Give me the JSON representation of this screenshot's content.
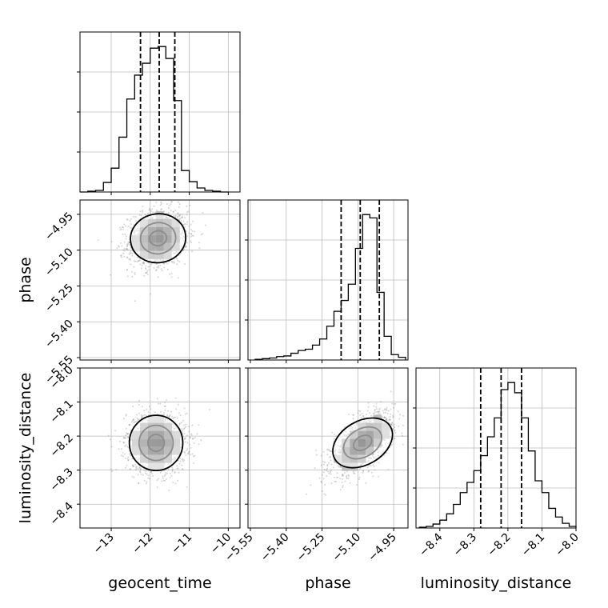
{
  "chart_data": {
    "type": "corner",
    "parameters": [
      "geocent_time",
      "phase",
      "luminosity_distance"
    ],
    "axis_labels": {
      "x": [
        "geocent_time",
        "phase",
        "luminosity_distance"
      ],
      "y": [
        "",
        "phase",
        "luminosity_distance"
      ]
    },
    "ranges": {
      "geocent_time": [
        -13.8,
        -9.7
      ],
      "phase": [
        -5.56,
        -4.89
      ],
      "luminosity_distance": [
        -8.47,
        -8.0
      ]
    },
    "ticks": {
      "geocent_time": {
        "values": [
          -13,
          -12,
          -11,
          -10
        ],
        "labels": [
          "−13",
          "−12",
          "−11",
          "−10"
        ]
      },
      "phase": {
        "values": [
          -5.55,
          -5.4,
          -5.25,
          -5.1,
          -4.95
        ],
        "labels": [
          "−5.55",
          "−5.40",
          "−5.25",
          "−5.10",
          "−4.95"
        ]
      },
      "luminosity_distance": {
        "values": [
          -8.4,
          -8.3,
          -8.2,
          -8.1,
          -8.0
        ],
        "labels": [
          "−8.4",
          "−8.3",
          "−8.2",
          "−8.1",
          "−8.0"
        ]
      }
    },
    "grid": true,
    "histograms": [
      {
        "parameter": "geocent_time",
        "bin_edges": [
          -13.8,
          -13.6,
          -13.4,
          -13.2,
          -13.0,
          -12.8,
          -12.6,
          -12.4,
          -12.2,
          -12.0,
          -11.8,
          -11.6,
          -11.4,
          -11.2,
          -11.0,
          -10.8,
          -10.6,
          -10.4,
          -10.2,
          -10.0
        ],
        "counts": [
          0,
          1,
          2,
          12,
          30,
          69,
          117,
          147,
          162,
          181,
          183,
          168,
          115,
          27,
          13,
          5,
          2,
          1,
          0
        ],
        "quantiles": [
          -12.25,
          -11.77,
          -11.37
        ]
      },
      {
        "parameter": "phase",
        "bin_edges": [
          -5.53,
          -5.5,
          -5.47,
          -5.44,
          -5.41,
          -5.38,
          -5.35,
          -5.32,
          -5.29,
          -5.26,
          -5.23,
          -5.2,
          -5.17,
          -5.14,
          -5.11,
          -5.08,
          -5.05,
          -5.02,
          -4.99,
          -4.96,
          -4.93,
          -4.9
        ],
        "counts": [
          1,
          2,
          3,
          5,
          6,
          10,
          14,
          16,
          22,
          31,
          50,
          72,
          88,
          112,
          165,
          215,
          210,
          100,
          35,
          8,
          4
        ],
        "quantiles": [
          -5.17,
          -5.09,
          -5.01
        ]
      },
      {
        "parameter": "luminosity_distance",
        "bin_edges": [
          -8.46,
          -8.44,
          -8.42,
          -8.4,
          -8.38,
          -8.36,
          -8.34,
          -8.32,
          -8.3,
          -8.28,
          -8.26,
          -8.24,
          -8.22,
          -8.2,
          -8.18,
          -8.16,
          -8.14,
          -8.12,
          -8.1,
          -8.08,
          -8.06,
          -8.04,
          -8.02,
          -8.0
        ],
        "counts": [
          1,
          2,
          5,
          10,
          18,
          30,
          45,
          58,
          73,
          92,
          116,
          140,
          176,
          185,
          172,
          140,
          98,
          60,
          45,
          25,
          14,
          6,
          2
        ],
        "quantiles": [
          -8.28,
          -8.22,
          -8.16
        ]
      }
    ],
    "scatter_panels": [
      {
        "x": "geocent_time",
        "y": "phase",
        "center": [
          -11.8,
          -5.05
        ],
        "spread": [
          0.38,
          0.06
        ],
        "correlation": 0.15,
        "peak": [
          -11.55,
          -5.02
        ]
      },
      {
        "x": "geocent_time",
        "y": "luminosity_distance",
        "center": [
          -11.85,
          -8.22
        ],
        "spread": [
          0.38,
          0.045
        ],
        "correlation": 0.0,
        "peak": [
          -11.75,
          -8.22
        ]
      },
      {
        "x": "phase",
        "y": "luminosity_distance",
        "center": [
          -5.08,
          -8.22
        ],
        "spread": [
          0.065,
          0.045
        ],
        "correlation": 0.6,
        "peak": [
          -5.05,
          -8.22
        ]
      }
    ]
  }
}
